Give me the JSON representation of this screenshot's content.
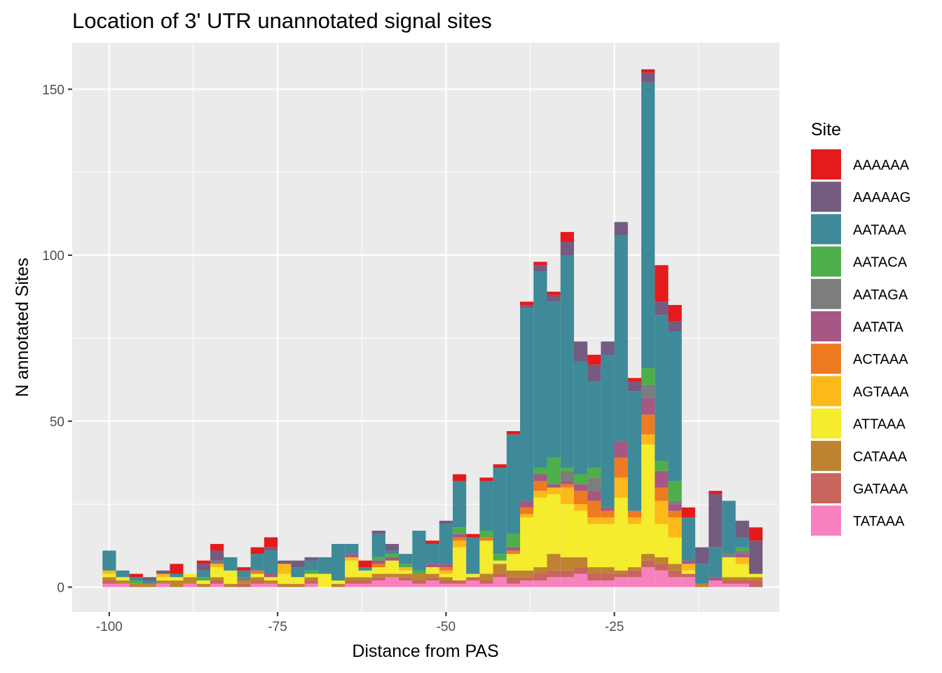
{
  "chart_data": {
    "type": "bar",
    "stacked": true,
    "title": "Location of 3' UTR unannotated signal sites",
    "xlabel": "Distance from PAS",
    "ylabel": "N annotated Sites",
    "x_ticks": [
      "-100",
      "-75",
      "-50",
      "-25"
    ],
    "x_tick_values": [
      -100,
      -75,
      -50,
      -25
    ],
    "y_ticks": [
      "0",
      "50",
      "100",
      "150"
    ],
    "y_tick_values": [
      0,
      50,
      100,
      150
    ],
    "xlim": [
      -105.5,
      -0.5
    ],
    "ylim": [
      -7.5,
      164
    ],
    "bin_width": 2,
    "grid": true,
    "legend_title": "Site",
    "legend_position": "right",
    "x": [
      -100,
      -98,
      -96,
      -94,
      -92,
      -90,
      -88,
      -86,
      -84,
      -82,
      -80,
      -78,
      -76,
      -74,
      -72,
      -70,
      -68,
      -66,
      -64,
      -62,
      -60,
      -58,
      -56,
      -54,
      -52,
      -50,
      -48,
      -46,
      -44,
      -42,
      -40,
      -38,
      -36,
      -34,
      -32,
      -30,
      -28,
      -26,
      -24,
      -22,
      -20,
      -18,
      -16,
      -14,
      -12,
      -10,
      -8,
      -6,
      -4
    ],
    "series": [
      {
        "name": "TATAAA",
        "color": "#F781BF",
        "values": [
          1,
          1,
          0,
          0,
          1,
          0,
          1,
          0,
          1,
          0,
          0,
          1,
          1,
          0,
          0,
          1,
          0,
          0,
          1,
          1,
          2,
          3,
          2,
          1,
          2,
          1,
          1,
          2,
          1,
          3,
          1,
          2,
          2,
          3,
          3,
          4,
          2,
          2,
          3,
          3,
          6,
          5,
          3,
          3,
          0,
          2,
          1,
          1,
          0
        ]
      },
      {
        "name": "GATAAA",
        "color": "#C8655E",
        "values": [
          1,
          0,
          0,
          0,
          0,
          0,
          0,
          0,
          1,
          0,
          1,
          1,
          0,
          0,
          0,
          1,
          0,
          0,
          1,
          1,
          1,
          0,
          1,
          1,
          1,
          1,
          1,
          1,
          1,
          1,
          2,
          1,
          2,
          2,
          2,
          2,
          2,
          2,
          1,
          2,
          2,
          2,
          2,
          1,
          0,
          0,
          1,
          1,
          2
        ]
      },
      {
        "name": "CATAAA",
        "color": "#BE8331",
        "values": [
          1,
          1,
          1,
          1,
          1,
          2,
          2,
          1,
          1,
          1,
          1,
          1,
          1,
          1,
          1,
          1,
          0,
          1,
          1,
          1,
          1,
          1,
          1,
          2,
          1,
          1,
          0,
          0,
          2,
          3,
          2,
          2,
          2,
          5,
          4,
          3,
          2,
          2,
          1,
          1,
          2,
          2,
          2,
          0,
          1,
          0,
          1,
          1,
          1
        ]
      },
      {
        "name": "ATTAAA",
        "color": "#F4EC2C",
        "values": [
          1,
          1,
          0,
          0,
          1,
          1,
          1,
          1,
          3,
          4,
          0,
          1,
          1,
          3,
          2,
          1,
          4,
          1,
          5,
          2,
          2,
          4,
          1,
          0,
          2,
          1,
          10,
          1,
          10,
          1,
          5,
          16,
          21,
          18,
          16,
          14,
          13,
          13,
          22,
          13,
          33,
          10,
          8,
          1,
          0,
          0,
          6,
          4,
          1
        ]
      },
      {
        "name": "AGTAAA",
        "color": "#FDB81A",
        "values": [
          1,
          0,
          0,
          0,
          1,
          0,
          0,
          0,
          1,
          0,
          0,
          0,
          0,
          3,
          0,
          0,
          0,
          0,
          1,
          0,
          0,
          0,
          1,
          0,
          0,
          1,
          2,
          0,
          0,
          0,
          0,
          1,
          2,
          2,
          5,
          2,
          2,
          2,
          6,
          2,
          3,
          7,
          6,
          2,
          0,
          0,
          0,
          2,
          0
        ]
      },
      {
        "name": "ACTAAA",
        "color": "#EE7A21",
        "values": [
          0,
          0,
          0,
          0,
          0,
          0,
          0,
          0,
          0,
          0,
          0,
          1,
          0,
          0,
          0,
          0,
          0,
          0,
          0,
          0,
          1,
          0,
          0,
          0,
          0,
          1,
          1,
          0,
          1,
          0,
          1,
          2,
          3,
          0,
          1,
          4,
          5,
          2,
          6,
          2,
          6,
          4,
          2,
          0,
          0,
          0,
          0,
          0,
          0
        ]
      },
      {
        "name": "AATATA",
        "color": "#A65783",
        "values": [
          0,
          0,
          0,
          0,
          0,
          0,
          0,
          0,
          0,
          0,
          0,
          0,
          1,
          0,
          0,
          0,
          0,
          0,
          1,
          0,
          1,
          1,
          0,
          0,
          1,
          1,
          1,
          0,
          0,
          0,
          1,
          2,
          2,
          1,
          1,
          2,
          3,
          1,
          5,
          0,
          5,
          5,
          2,
          1,
          0,
          1,
          0,
          1,
          0
        ]
      },
      {
        "name": "AATAGA",
        "color": "#7B7E7C",
        "values": [
          0,
          0,
          0,
          0,
          0,
          0,
          0,
          0,
          1,
          0,
          1,
          0,
          0,
          0,
          0,
          0,
          0,
          0,
          0,
          0,
          0,
          0,
          0,
          0,
          0,
          0,
          0,
          0,
          0,
          0,
          0,
          0,
          0,
          0,
          3,
          0,
          4,
          0,
          0,
          0,
          4,
          0,
          1,
          0,
          0,
          0,
          1,
          1,
          0
        ]
      },
      {
        "name": "AATACA",
        "color": "#4DAF4A",
        "values": [
          0,
          0,
          1,
          0,
          0,
          0,
          0,
          1,
          0,
          0,
          0,
          0,
          0,
          0,
          0,
          1,
          0,
          0,
          0,
          0,
          1,
          1,
          1,
          1,
          0,
          0,
          2,
          0,
          2,
          2,
          4,
          0,
          2,
          8,
          1,
          3,
          3,
          0,
          0,
          0,
          5,
          3,
          6,
          0,
          0,
          0,
          0,
          1,
          0
        ]
      },
      {
        "name": "AATAAA",
        "color": "#3E8A99",
        "values": [
          6,
          2,
          1,
          1,
          0,
          1,
          0,
          2,
          0,
          4,
          2,
          5,
          7,
          0,
          3,
          3,
          5,
          11,
          3,
          1,
          7,
          1,
          3,
          12,
          6,
          12,
          14,
          11,
          15,
          26,
          30,
          58,
          59,
          47,
          64,
          34,
          26,
          46,
          62,
          36,
          86,
          44,
          45,
          13,
          6,
          9,
          16,
          3,
          0
        ]
      },
      {
        "name": "AAAAAG",
        "color": "#745B80",
        "values": [
          0,
          0,
          0,
          1,
          1,
          0,
          0,
          2,
          3,
          0,
          0,
          0,
          1,
          1,
          2,
          1,
          0,
          0,
          0,
          0,
          1,
          2,
          0,
          0,
          0,
          1,
          0,
          0,
          0,
          0,
          0,
          1,
          2,
          2,
          4,
          6,
          5,
          4,
          4,
          3,
          3,
          4,
          3,
          0,
          5,
          16,
          0,
          5,
          10
        ]
      },
      {
        "name": "AAAAAA",
        "color": "#E41A1C",
        "values": [
          0,
          0,
          1,
          0,
          0,
          3,
          0,
          1,
          2,
          0,
          1,
          2,
          3,
          0,
          0,
          0,
          0,
          0,
          0,
          2,
          0,
          0,
          0,
          0,
          1,
          0,
          2,
          1,
          1,
          1,
          1,
          1,
          1,
          1,
          3,
          0,
          3,
          0,
          0,
          1,
          1,
          11,
          5,
          3,
          0,
          1,
          0,
          0,
          4
        ]
      }
    ]
  }
}
